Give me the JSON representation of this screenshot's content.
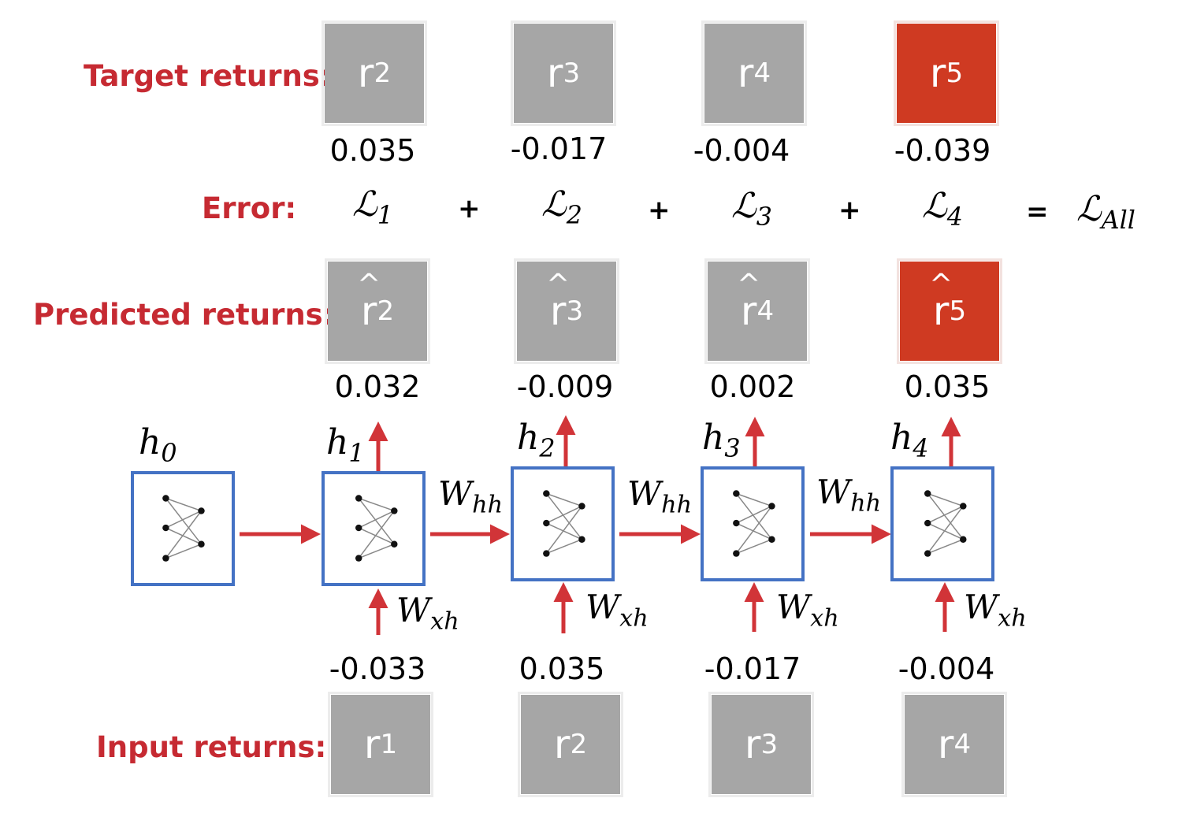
{
  "labels": {
    "target": "Target returns:",
    "error": "Error:",
    "predicted": "Predicted returns:",
    "input": "Input returns:"
  },
  "target_returns": [
    {
      "symbol": "r",
      "sub": "2",
      "value": "0.035",
      "highlight": false
    },
    {
      "symbol": "r",
      "sub": "3",
      "value": "-0.017",
      "highlight": false
    },
    {
      "symbol": "r",
      "sub": "4",
      "value": "-0.004",
      "highlight": false
    },
    {
      "symbol": "r",
      "sub": "5",
      "value": "-0.039",
      "highlight": true
    }
  ],
  "errors": {
    "terms": [
      {
        "symbol": "ℒ",
        "sub": "1"
      },
      {
        "symbol": "ℒ",
        "sub": "2"
      },
      {
        "symbol": "ℒ",
        "sub": "3"
      },
      {
        "symbol": "ℒ",
        "sub": "4"
      }
    ],
    "plus": "+",
    "equals": "=",
    "total": {
      "symbol": "ℒ",
      "sub": "All"
    }
  },
  "predicted_returns": [
    {
      "symbol": "r",
      "hat": "^",
      "sub": "2",
      "value": "0.032",
      "highlight": false
    },
    {
      "symbol": "r",
      "hat": "^",
      "sub": "3",
      "value": "-0.009",
      "highlight": false
    },
    {
      "symbol": "r",
      "hat": "^",
      "sub": "4",
      "value": "0.002",
      "highlight": false
    },
    {
      "symbol": "r",
      "hat": "^",
      "sub": "5",
      "value": "0.035",
      "highlight": true
    }
  ],
  "hidden_states": [
    {
      "symbol": "h",
      "sub": "0"
    },
    {
      "symbol": "h",
      "sub": "1"
    },
    {
      "symbol": "h",
      "sub": "2"
    },
    {
      "symbol": "h",
      "sub": "3"
    },
    {
      "symbol": "h",
      "sub": "4"
    }
  ],
  "weights": {
    "hh": {
      "symbol": "W",
      "sub": "hh"
    },
    "xh": {
      "symbol": "W",
      "sub": "xh"
    }
  },
  "input_returns": [
    {
      "symbol": "r",
      "sub": "1",
      "value": "-0.033"
    },
    {
      "symbol": "r",
      "sub": "2",
      "value": "0.035"
    },
    {
      "symbol": "r",
      "sub": "3",
      "value": "-0.017"
    },
    {
      "symbol": "r",
      "sub": "4",
      "value": "-0.004"
    }
  ],
  "colors": {
    "label_red": "#c62a32",
    "arrow_red": "#d13438",
    "cell_border": "#4472c4",
    "box_gray": "#a6a6a6",
    "box_highlight": "#cf3a22"
  }
}
